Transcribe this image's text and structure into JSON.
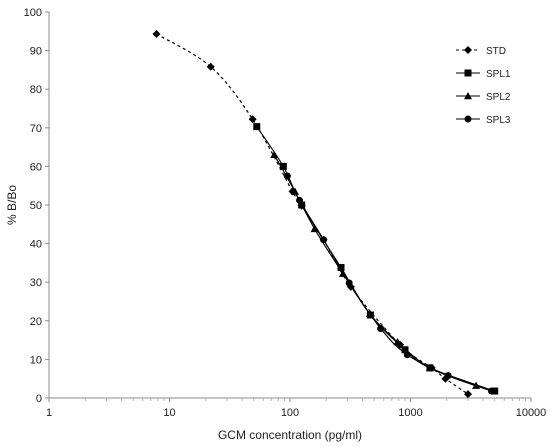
{
  "chart_data": {
    "type": "scatter",
    "title": "",
    "xlabel": "GCM concentration (pg/ml)",
    "ylabel": "% B/Bo",
    "x_scale": "log",
    "xlim": [
      1,
      10000
    ],
    "ylim": [
      0,
      100
    ],
    "x_ticks": [
      "1",
      "10",
      "100",
      "1000",
      "10000"
    ],
    "y_ticks": [
      "0",
      "10",
      "20",
      "30",
      "40",
      "50",
      "60",
      "70",
      "80",
      "90",
      "100"
    ],
    "grid": false,
    "legend_position": "top-right",
    "colors": {
      "series": "#000000",
      "axis": "#8c8c8c",
      "minor_tick": "#b0b0b0"
    },
    "series": [
      {
        "name": "STD",
        "marker": "diamond",
        "line": "dashed",
        "x": [
          7.8,
          22,
          49,
          105,
          125,
          190,
          320,
          820,
          1500,
          1950,
          3000
        ],
        "y": [
          94.3,
          85.8,
          72.2,
          53.5,
          49.8,
          41.0,
          28.8,
          13.8,
          7.8,
          5.0,
          1.0
        ]
      },
      {
        "name": "SPL1",
        "marker": "square",
        "line": "solid",
        "x": [
          53,
          88,
          125,
          265,
          465,
          900,
          1450,
          5000
        ],
        "y": [
          70.3,
          60.0,
          50.0,
          33.8,
          21.5,
          12.5,
          7.8,
          1.8
        ]
      },
      {
        "name": "SPL2",
        "marker": "triangle",
        "line": "solid",
        "x": [
          74,
          110,
          160,
          275,
          460,
          780,
          1450,
          3500
        ],
        "y": [
          63.0,
          53.5,
          43.8,
          32.2,
          21.8,
          14.5,
          7.8,
          3.2
        ]
      },
      {
        "name": "SPL3",
        "marker": "circle",
        "line": "solid",
        "x": [
          95,
          120,
          190,
          310,
          565,
          940,
          2050,
          4700
        ],
        "y": [
          57.5,
          51.2,
          41.0,
          29.8,
          18.0,
          11.2,
          5.8,
          1.8
        ]
      }
    ]
  }
}
